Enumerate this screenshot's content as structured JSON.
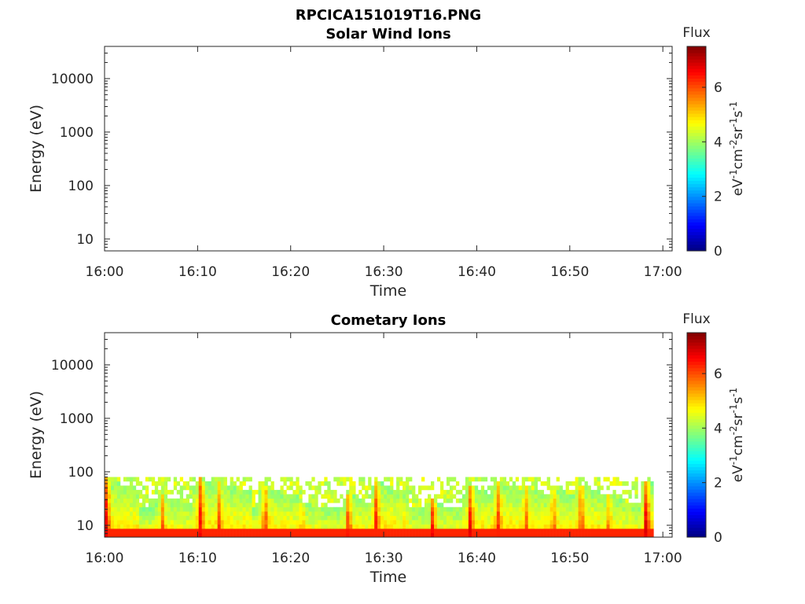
{
  "figure_title": "RPCICA151019T16.PNG",
  "colorbar": {
    "title": "Flux",
    "unit_parts": [
      "eV",
      "-1",
      "cm",
      "-2",
      "sr",
      "-1",
      "s",
      "-1"
    ],
    "range": [
      0,
      7.5
    ],
    "ticks": [
      "0",
      "2",
      "4",
      "6"
    ],
    "colormap": "jet"
  },
  "chart_data": [
    {
      "type": "heatmap",
      "title": "Solar Wind Ions",
      "xlabel": "Time",
      "ylabel": "Energy (eV)",
      "x_ticks": [
        "16:00",
        "16:10",
        "16:20",
        "16:30",
        "16:40",
        "16:50",
        "17:00"
      ],
      "xlim": [
        "16:00",
        "17:01"
      ],
      "y_ticks": [
        "10",
        "100",
        "1000",
        "10000"
      ],
      "y_scale": "log",
      "ylim": [
        6,
        40000
      ],
      "flux_range": [
        0,
        7.5
      ],
      "events": []
    },
    {
      "type": "heatmap",
      "title": "Cometary Ions",
      "xlabel": "Time",
      "ylabel": "Energy (eV)",
      "x_ticks": [
        "16:00",
        "16:10",
        "16:20",
        "16:30",
        "16:40",
        "16:50",
        "17:00"
      ],
      "xlim": [
        "16:00",
        "17:01"
      ],
      "y_ticks": [
        "10",
        "100",
        "1000",
        "10000"
      ],
      "y_scale": "log",
      "ylim": [
        6,
        40000
      ],
      "flux_range": [
        0,
        7.5
      ],
      "energy_cutoff_eV": 80,
      "data_end": "16:59",
      "events": [
        {
          "time": "16:00",
          "top_eV": 80,
          "peak": 7.0
        },
        {
          "time": "16:06",
          "top_eV": 40,
          "peak": 6.5
        },
        {
          "time": "16:10",
          "top_eV": 80,
          "peak": 7.3
        },
        {
          "time": "16:12",
          "top_eV": 70,
          "peak": 6.8
        },
        {
          "time": "16:17",
          "top_eV": 60,
          "peak": 6.9
        },
        {
          "time": "16:21",
          "top_eV": 30,
          "peak": 6.3
        },
        {
          "time": "16:26",
          "top_eV": 40,
          "peak": 6.8
        },
        {
          "time": "16:29",
          "top_eV": 70,
          "peak": 6.6
        },
        {
          "time": "16:35",
          "top_eV": 30,
          "peak": 7.3
        },
        {
          "time": "16:39",
          "top_eV": 60,
          "peak": 7.2
        },
        {
          "time": "16:42",
          "top_eV": 70,
          "peak": 7.0
        },
        {
          "time": "16:45",
          "top_eV": 60,
          "peak": 6.7
        },
        {
          "time": "16:48",
          "top_eV": 55,
          "peak": 6.6
        },
        {
          "time": "16:51",
          "top_eV": 60,
          "peak": 6.8
        },
        {
          "time": "16:54",
          "top_eV": 40,
          "peak": 6.4
        },
        {
          "time": "16:58",
          "top_eV": 70,
          "peak": 7.1
        }
      ]
    }
  ]
}
